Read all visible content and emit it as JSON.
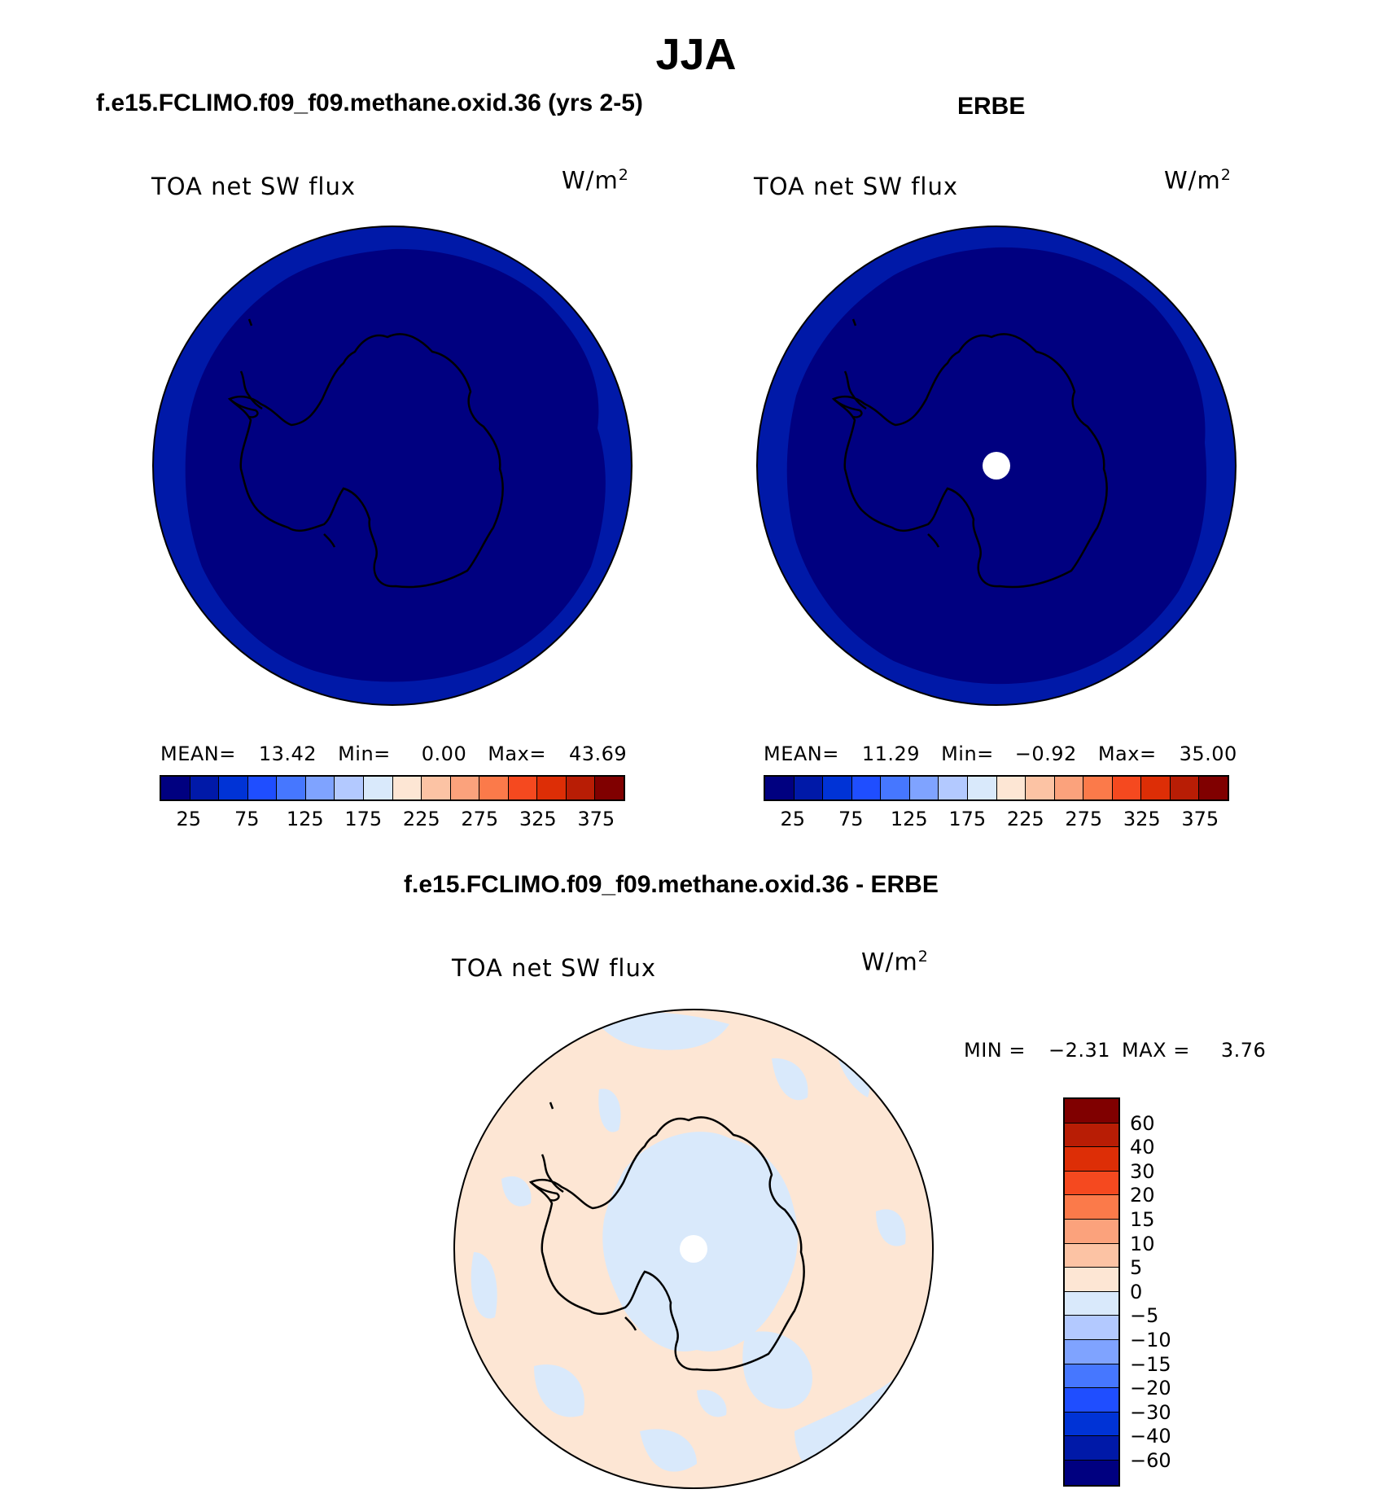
{
  "title": "JJA",
  "panels": [
    {
      "title": "f.e15.FCLIMO.f09_f09.methane.oxid.36 (yrs 2-5)",
      "variable": "TOA net SW flux",
      "units_base": "W/m",
      "units_exp": "2",
      "stats": {
        "mean_label": "MEAN=",
        "mean": "13.42",
        "min_label": "Min=",
        "min": "0.00",
        "max_label": "Max=",
        "max": "43.69"
      }
    },
    {
      "title": "ERBE",
      "variable": "TOA net SW flux",
      "units_base": "W/m",
      "units_exp": "2",
      "stats": {
        "mean_label": "MEAN=",
        "mean": "11.29",
        "min_label": "Min=",
        "min": "−0.92",
        "max_label": "Max=",
        "max": "35.00"
      }
    },
    {
      "title": "f.e15.FCLIMO.f09_f09.methane.oxid.36 - ERBE",
      "variable": "TOA net SW flux",
      "units_base": "W/m",
      "units_exp": "2",
      "stats": {
        "min_label": "MIN =",
        "min": "−2.31",
        "max_label": "MAX =",
        "max": "3.76"
      }
    }
  ],
  "colorbar_abs": {
    "ticks": [
      "25",
      "75",
      "125",
      "175",
      "225",
      "275",
      "325",
      "375"
    ],
    "colors": [
      "#000080",
      "#0019a8",
      "#0033d6",
      "#1f4eff",
      "#4677ff",
      "#7fa3ff",
      "#b3c9ff",
      "#d9e9fb",
      "#fde6d4",
      "#fcc3a4",
      "#fba27c",
      "#fb7a4a",
      "#f5491f",
      "#dd2e06",
      "#b81d05",
      "#800000"
    ]
  },
  "colorbar_diff": {
    "ticks": [
      "60",
      "40",
      "30",
      "20",
      "15",
      "10",
      "5",
      "0",
      "−5",
      "−10",
      "−15",
      "−20",
      "−30",
      "−40",
      "−60"
    ],
    "colors": [
      "#800000",
      "#b81d05",
      "#dd2e06",
      "#f5491f",
      "#fb7a4a",
      "#fba27c",
      "#fcc3a4",
      "#fde6d4",
      "#d9e9fb",
      "#b3c9ff",
      "#7fa3ff",
      "#4677ff",
      "#1f4eff",
      "#0033d6",
      "#0019a8",
      "#000080"
    ]
  }
}
